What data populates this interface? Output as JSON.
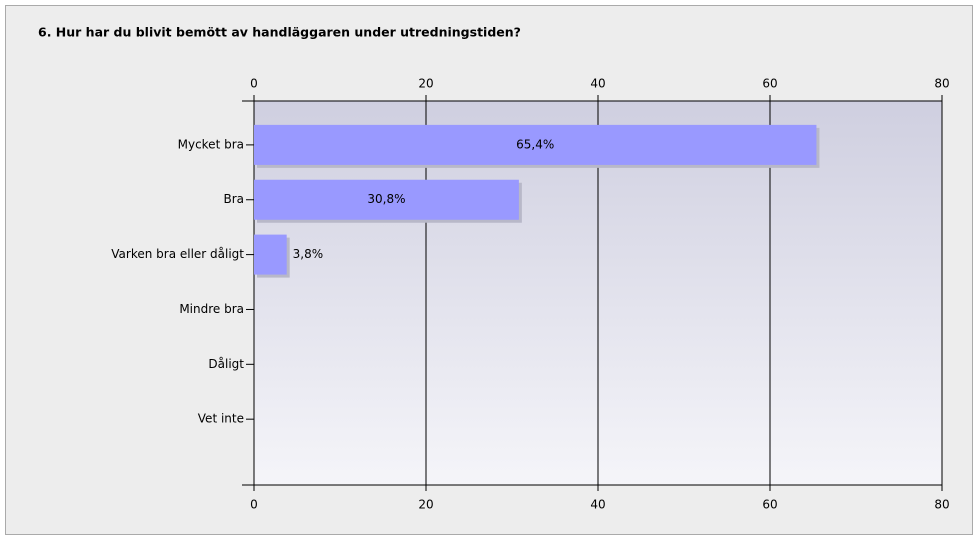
{
  "chart_data": {
    "type": "barh",
    "title": "6. Hur har du blivit bemött av handläggaren under utredningstiden?",
    "categories": [
      "Mycket bra",
      "Bra",
      "Varken bra eller dåligt",
      "Mindre bra",
      "Dåligt",
      "Vet inte"
    ],
    "values": [
      65.4,
      30.8,
      3.8,
      0,
      0,
      0
    ],
    "value_labels": [
      "65,4%",
      "30,8%",
      "3,8%",
      null,
      null,
      null
    ],
    "color": "#9999ff",
    "xlim": [
      0,
      80
    ],
    "xticks": [
      0,
      20,
      40,
      60,
      80
    ],
    "grid": true
  }
}
